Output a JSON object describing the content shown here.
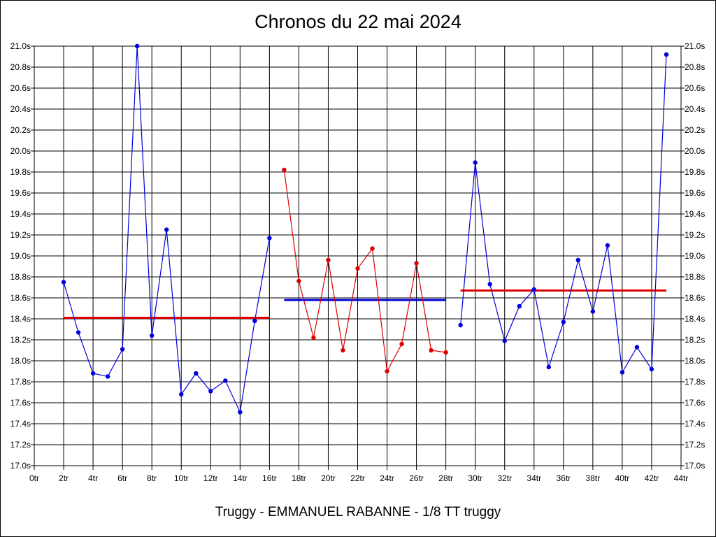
{
  "chart_data": {
    "type": "line",
    "title": "Chronos du 22 mai 2024",
    "footer": "Truggy - EMMANUEL RABANNE - 1/8 TT truggy",
    "xlim": [
      0,
      44
    ],
    "ylim": [
      17.0,
      21.0
    ],
    "x_ticks": [
      "0tr",
      "2tr",
      "4tr",
      "6tr",
      "8tr",
      "10tr",
      "12tr",
      "14tr",
      "16tr",
      "18tr",
      "20tr",
      "22tr",
      "24tr",
      "26tr",
      "28tr",
      "30tr",
      "32tr",
      "34tr",
      "36tr",
      "38tr",
      "40tr",
      "42tr",
      "44tr"
    ],
    "y_ticks": [
      "17.0s",
      "17.2s",
      "17.4s",
      "17.6s",
      "17.8s",
      "18.0s",
      "18.2s",
      "18.4s",
      "18.6s",
      "18.8s",
      "19.0s",
      "19.2s",
      "19.4s",
      "19.6s",
      "19.8s",
      "20.0s",
      "20.2s",
      "20.4s",
      "20.6s",
      "20.8s",
      "21.0s"
    ],
    "grid": true,
    "series": [
      {
        "color": "#0000dd",
        "points": [
          [
            2,
            18.75
          ],
          [
            3,
            18.27
          ],
          [
            4,
            17.88
          ],
          [
            5,
            17.85
          ],
          [
            6,
            18.11
          ],
          [
            7,
            21.0
          ],
          [
            8,
            18.24
          ],
          [
            9,
            19.25
          ],
          [
            10,
            17.68
          ],
          [
            11,
            17.88
          ],
          [
            12,
            17.71
          ],
          [
            13,
            17.81
          ],
          [
            14,
            17.51
          ],
          [
            15,
            18.38
          ],
          [
            16,
            19.17
          ]
        ]
      },
      {
        "color": "#dd0000",
        "points": [
          [
            17,
            19.82
          ],
          [
            18,
            18.76
          ],
          [
            19,
            18.22
          ],
          [
            20,
            18.96
          ],
          [
            21,
            18.1
          ],
          [
            22,
            18.88
          ],
          [
            23,
            19.07
          ],
          [
            24,
            17.9
          ],
          [
            25,
            18.16
          ],
          [
            26,
            18.93
          ],
          [
            27,
            18.1
          ],
          [
            28,
            18.08
          ]
        ]
      },
      {
        "color": "#0000dd",
        "points": [
          [
            29,
            18.34
          ],
          [
            30,
            19.89
          ],
          [
            31,
            18.73
          ],
          [
            32,
            18.19
          ],
          [
            33,
            18.52
          ],
          [
            34,
            18.68
          ],
          [
            35,
            17.94
          ],
          [
            36,
            18.37
          ],
          [
            37,
            18.96
          ],
          [
            38,
            18.47
          ],
          [
            39,
            19.1
          ],
          [
            40,
            17.89
          ],
          [
            41,
            18.13
          ],
          [
            42,
            17.92
          ],
          [
            43,
            20.92
          ]
        ]
      }
    ],
    "averages": [
      {
        "color": "#dd0000",
        "x": [
          2,
          16
        ],
        "y": 18.41
      },
      {
        "color": "#0000dd",
        "x": [
          17,
          28
        ],
        "y": 18.58
      },
      {
        "color": "#dd0000",
        "x": [
          29,
          43
        ],
        "y": 18.67
      }
    ]
  }
}
